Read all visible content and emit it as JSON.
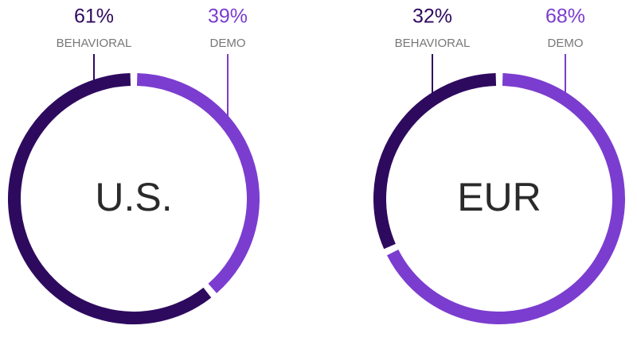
{
  "chart_data": [
    {
      "type": "pie",
      "title": "U.S.",
      "categories": [
        "BEHAVIORAL",
        "DEMO"
      ],
      "values": [
        61,
        39
      ],
      "value_labels": [
        "61%",
        "39%"
      ],
      "colors": [
        "#2e0a5f",
        "#7b3dcf"
      ]
    },
    {
      "type": "pie",
      "title": "EUR",
      "categories": [
        "BEHAVIORAL",
        "DEMO"
      ],
      "values": [
        32,
        68
      ],
      "value_labels": [
        "32%",
        "68%"
      ],
      "colors": [
        "#2e0a5f",
        "#7b3dcf"
      ]
    }
  ]
}
